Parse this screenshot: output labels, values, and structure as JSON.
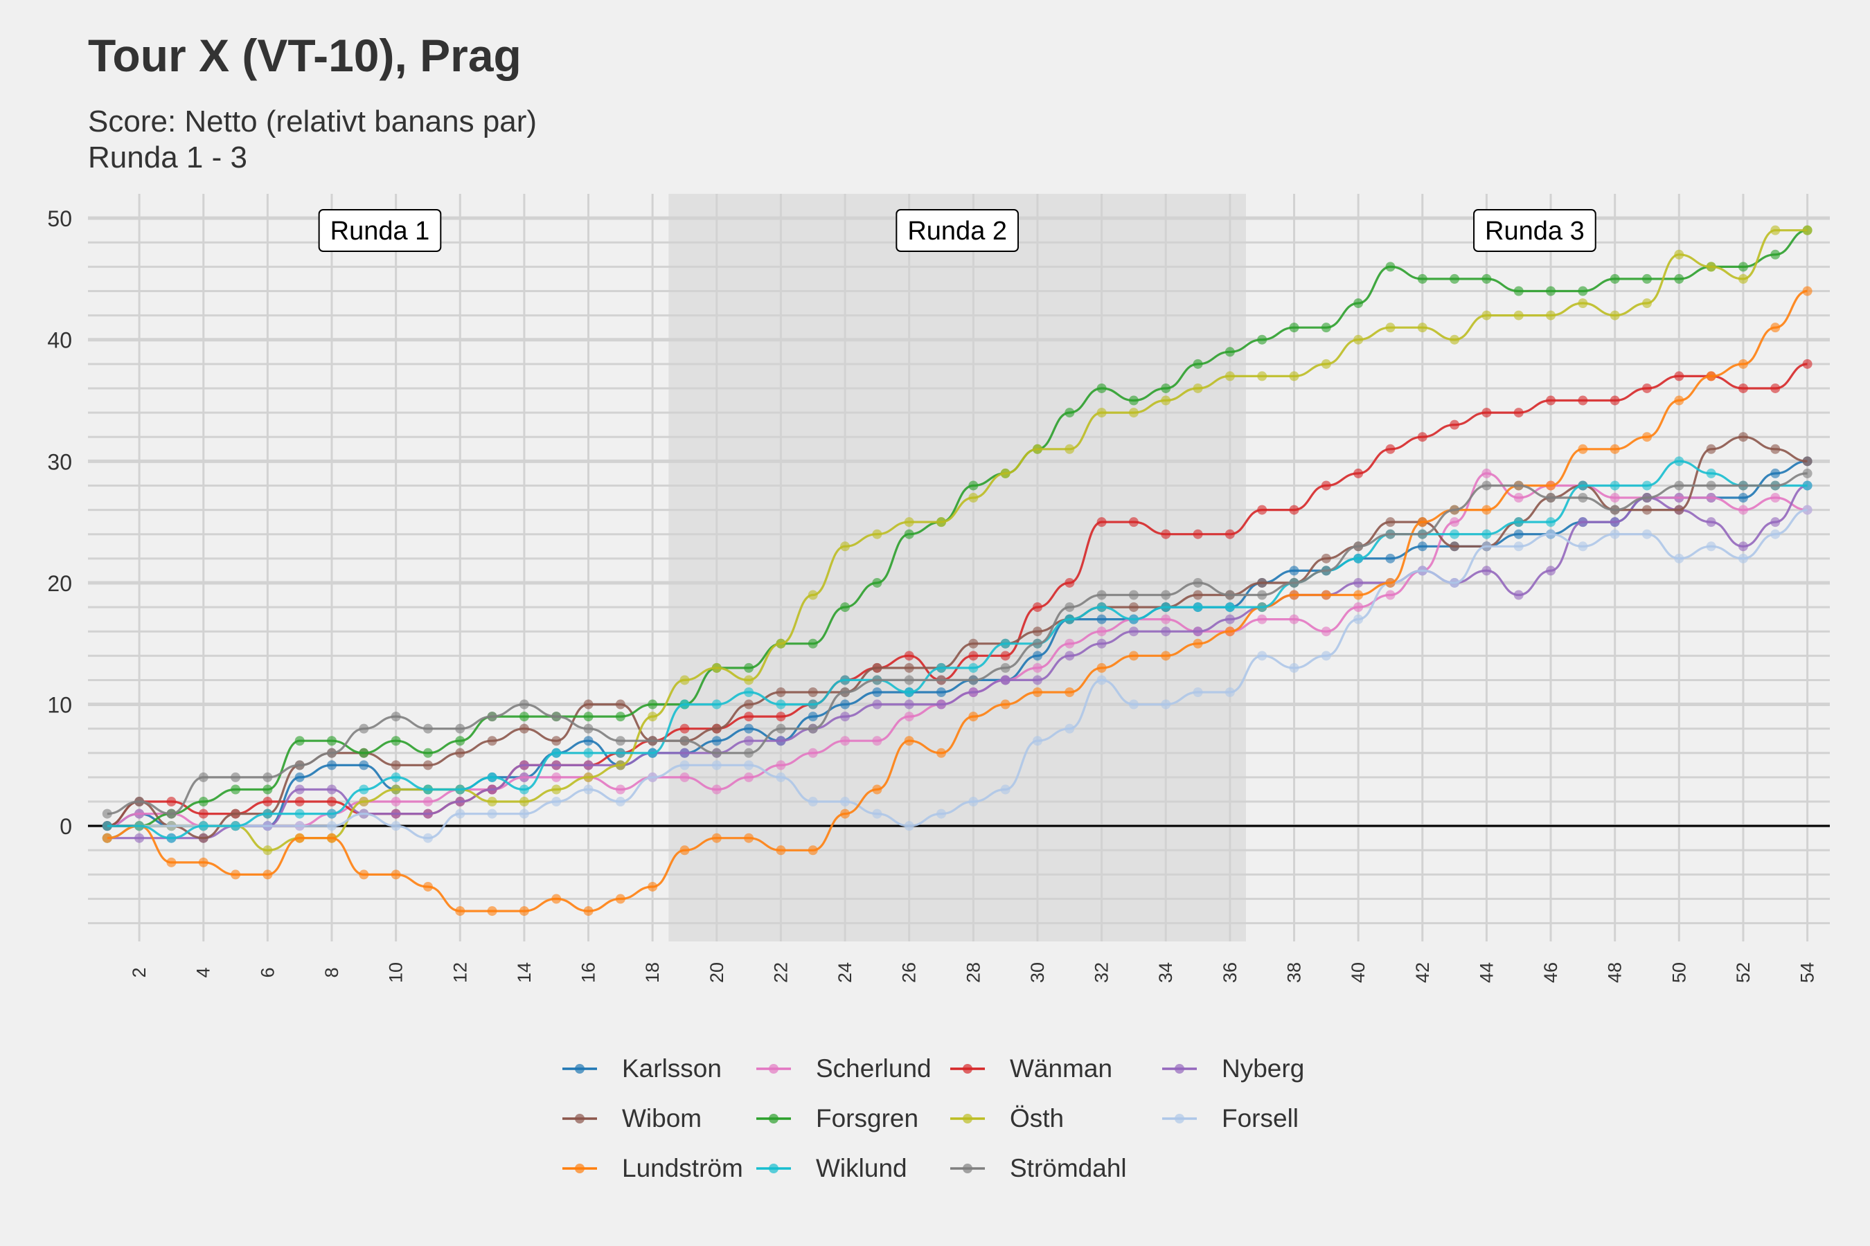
{
  "title": "Tour X (VT-10), Prag",
  "subtitle_line1": "Score: Netto (relativt banans par)",
  "subtitle_line2": "Runda 1 - 3",
  "chart_data": {
    "type": "line",
    "x": [
      1,
      2,
      3,
      4,
      5,
      6,
      7,
      8,
      9,
      10,
      11,
      12,
      13,
      14,
      15,
      16,
      17,
      18,
      19,
      20,
      21,
      22,
      23,
      24,
      25,
      26,
      27,
      28,
      29,
      30,
      31,
      32,
      33,
      34,
      35,
      36,
      37,
      38,
      39,
      40,
      41,
      42,
      43,
      44,
      45,
      46,
      47,
      48,
      49,
      50,
      51,
      52,
      53,
      54
    ],
    "x_ticks": [
      2,
      4,
      6,
      8,
      10,
      12,
      14,
      16,
      18,
      20,
      22,
      24,
      26,
      28,
      30,
      32,
      34,
      36,
      38,
      40,
      42,
      44,
      46,
      48,
      50,
      52,
      54
    ],
    "y_ticks": [
      0,
      10,
      20,
      30,
      40,
      50
    ],
    "xlim": [
      0.4,
      54.7
    ],
    "ylim": [
      -9.5,
      52
    ],
    "grid": true,
    "legend_position": "bottom",
    "zero_line": true,
    "rounds": [
      {
        "label": "Runda 1",
        "x_start": 0.5,
        "x_end": 18.5,
        "shaded": false
      },
      {
        "label": "Runda 2",
        "x_start": 18.5,
        "x_end": 36.5,
        "shaded": true
      },
      {
        "label": "Runda 3",
        "x_start": 36.5,
        "x_end": 54.5,
        "shaded": false
      }
    ],
    "series": [
      {
        "name": "Karlsson",
        "color": "#1f77b4",
        "values": [
          0,
          1,
          0,
          0,
          0,
          0,
          4,
          5,
          5,
          3,
          3,
          3,
          4,
          4,
          6,
          7,
          5,
          6,
          6,
          7,
          8,
          7,
          9,
          10,
          11,
          11,
          11,
          12,
          12,
          14,
          17,
          17,
          17,
          18,
          18,
          18,
          20,
          21,
          21,
          22,
          22,
          23,
          23,
          23,
          24,
          24,
          25,
          25,
          27,
          27,
          27,
          27,
          29,
          30
        ]
      },
      {
        "name": "Scherlund",
        "color": "#e377c2",
        "values": [
          0,
          1,
          1,
          0,
          0,
          0,
          0,
          1,
          2,
          2,
          2,
          3,
          3,
          4,
          4,
          4,
          3,
          4,
          4,
          3,
          4,
          5,
          6,
          7,
          7,
          9,
          10,
          11,
          12,
          13,
          15,
          16,
          17,
          17,
          16,
          16,
          17,
          17,
          16,
          18,
          19,
          21,
          25,
          29,
          27,
          28,
          28,
          27,
          27,
          27,
          27,
          26,
          27,
          26
        ]
      },
      {
        "name": "Wänman",
        "color": "#d62728",
        "values": [
          0,
          2,
          2,
          1,
          1,
          2,
          2,
          2,
          1,
          1,
          1,
          2,
          3,
          5,
          5,
          5,
          6,
          7,
          8,
          8,
          9,
          9,
          10,
          12,
          13,
          14,
          12,
          14,
          14,
          18,
          20,
          25,
          25,
          24,
          24,
          24,
          26,
          26,
          28,
          29,
          31,
          32,
          33,
          34,
          34,
          35,
          35,
          35,
          36,
          37,
          37,
          36,
          36,
          38
        ]
      },
      {
        "name": "Nyberg",
        "color": "#9467bd",
        "values": [
          -1,
          -1,
          -1,
          -1,
          0,
          0,
          3,
          3,
          1,
          1,
          1,
          2,
          3,
          5,
          5,
          5,
          5,
          6,
          6,
          6,
          7,
          7,
          8,
          9,
          10,
          10,
          10,
          11,
          12,
          12,
          14,
          15,
          16,
          16,
          16,
          17,
          18,
          19,
          19,
          20,
          20,
          21,
          20,
          21,
          19,
          21,
          25,
          25,
          27,
          26,
          25,
          23,
          25,
          28
        ]
      },
      {
        "name": "Wibom",
        "color": "#8c564b",
        "values": [
          0,
          2,
          0,
          -1,
          1,
          1,
          5,
          6,
          6,
          5,
          5,
          6,
          7,
          8,
          7,
          10,
          10,
          7,
          7,
          8,
          10,
          11,
          11,
          11,
          13,
          13,
          13,
          15,
          15,
          16,
          17,
          18,
          18,
          18,
          19,
          19,
          20,
          20,
          22,
          23,
          25,
          25,
          23,
          23,
          25,
          27,
          28,
          26,
          26,
          26,
          31,
          32,
          31,
          30
        ]
      },
      {
        "name": "Forsgren",
        "color": "#2ca02c",
        "values": [
          -1,
          0,
          1,
          2,
          3,
          3,
          7,
          7,
          6,
          7,
          6,
          7,
          9,
          9,
          9,
          9,
          9,
          10,
          10,
          13,
          13,
          15,
          15,
          18,
          20,
          24,
          25,
          28,
          29,
          31,
          34,
          36,
          35,
          36,
          38,
          39,
          40,
          41,
          41,
          43,
          46,
          45,
          45,
          45,
          44,
          44,
          44,
          45,
          45,
          45,
          46,
          46,
          47,
          49
        ]
      },
      {
        "name": "Östh",
        "color": "#bcbd22",
        "values": [
          -1,
          0,
          0,
          0,
          0,
          -2,
          -1,
          -1,
          2,
          3,
          3,
          3,
          2,
          2,
          3,
          4,
          5,
          9,
          12,
          13,
          12,
          15,
          19,
          23,
          24,
          25,
          25,
          27,
          29,
          31,
          31,
          34,
          34,
          35,
          36,
          37,
          37,
          37,
          38,
          40,
          41,
          41,
          40,
          42,
          42,
          42,
          43,
          42,
          43,
          47,
          46,
          45,
          49,
          49
        ]
      },
      {
        "name": "Forsell",
        "color": "#aec7e8",
        "values": [
          -1,
          0,
          0,
          0,
          0,
          0,
          0,
          0,
          1,
          0,
          -1,
          1,
          1,
          1,
          2,
          3,
          2,
          4,
          5,
          5,
          5,
          4,
          2,
          2,
          1,
          0,
          1,
          2,
          3,
          7,
          8,
          12,
          10,
          10,
          11,
          11,
          14,
          13,
          14,
          17,
          20,
          21,
          20,
          23,
          23,
          24,
          23,
          24,
          24,
          22,
          23,
          22,
          24,
          26
        ]
      },
      {
        "name": "Lundström",
        "color": "#ff7f0e",
        "values": [
          -1,
          0,
          -3,
          -3,
          -4,
          -4,
          -1,
          -1,
          -4,
          -4,
          -5,
          -7,
          -7,
          -7,
          -6,
          -7,
          -6,
          -5,
          -2,
          -1,
          -1,
          -2,
          -2,
          1,
          3,
          7,
          6,
          9,
          10,
          11,
          11,
          13,
          14,
          14,
          15,
          16,
          18,
          19,
          19,
          19,
          20,
          25,
          26,
          26,
          28,
          28,
          31,
          31,
          32,
          35,
          37,
          38,
          41,
          44
        ]
      },
      {
        "name": "Wiklund",
        "color": "#17becf",
        "values": [
          0,
          0,
          -1,
          0,
          0,
          1,
          1,
          1,
          3,
          4,
          3,
          3,
          4,
          3,
          6,
          6,
          6,
          6,
          10,
          10,
          11,
          10,
          10,
          12,
          12,
          11,
          13,
          13,
          15,
          15,
          17,
          18,
          17,
          18,
          18,
          18,
          18,
          20,
          21,
          22,
          24,
          24,
          24,
          24,
          25,
          25,
          28,
          28,
          28,
          30,
          29,
          28,
          28,
          28
        ]
      },
      {
        "name": "Strömdahl",
        "color": "#7f7f7f",
        "values": [
          1,
          2,
          1,
          4,
          4,
          4,
          5,
          6,
          8,
          9,
          8,
          8,
          9,
          10,
          9,
          8,
          7,
          7,
          7,
          6,
          6,
          8,
          8,
          11,
          12,
          12,
          12,
          12,
          13,
          15,
          18,
          19,
          19,
          19,
          20,
          19,
          19,
          20,
          21,
          23,
          24,
          24,
          26,
          28,
          28,
          27,
          27,
          26,
          27,
          28,
          28,
          28,
          28,
          29
        ]
      }
    ]
  }
}
